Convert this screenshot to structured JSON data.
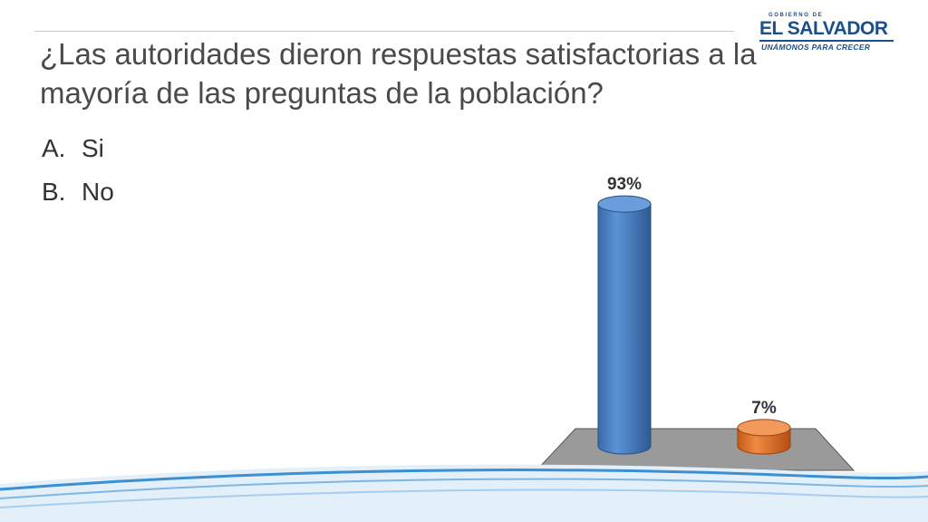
{
  "slide": {
    "title": "¿Las autoridades dieron respuestas satisfactorias a la mayoría de las preguntas de la población?",
    "options": [
      {
        "letter": "A.",
        "label": "Si"
      },
      {
        "letter": "B.",
        "label": "No"
      }
    ]
  },
  "logo": {
    "top_text": "GOBIERNO DE",
    "name": "EL SALVADOR",
    "tagline": "UNÁMONOS PARA CRECER"
  },
  "colors": {
    "bar_si": "#4a7fc1",
    "bar_no": "#e0732a",
    "floor": "#9a9a9a",
    "wave_blue": "#3c8fd0"
  },
  "chart_data": {
    "type": "bar",
    "style": "3d-cylinder",
    "categories": [
      "Si",
      "No"
    ],
    "values": [
      93,
      7
    ],
    "data_labels": [
      "93%",
      "7%"
    ],
    "ylim": [
      0,
      100
    ],
    "grid": false,
    "legend": "none"
  }
}
